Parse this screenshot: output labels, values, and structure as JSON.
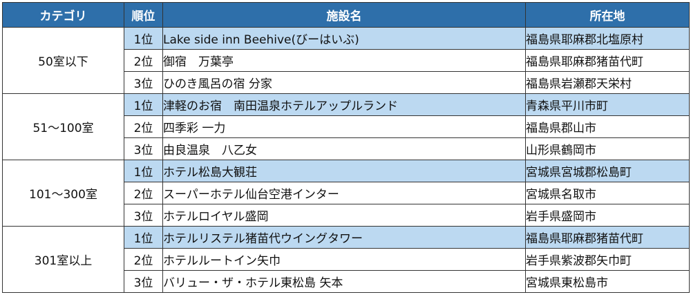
{
  "header": {
    "category": "カテゴリ",
    "rank": "順位",
    "facility": "施設名",
    "location": "所在地"
  },
  "groups": [
    {
      "category": "50室以下",
      "rows": [
        {
          "rank": "1位",
          "facility": "Lake side inn Beehive(びーはいぶ)",
          "location": "福島県耶麻郡北塩原村"
        },
        {
          "rank": "2位",
          "facility": "御宿　万葉亭",
          "location": "福島県耶麻郡猪苗代町"
        },
        {
          "rank": "3位",
          "facility": "ひのき風呂の宿 分家",
          "location": "福島県岩瀬郡天栄村"
        }
      ]
    },
    {
      "category": "51～100室",
      "rows": [
        {
          "rank": "1位",
          "facility": "津軽のお宿　南田温泉ホテルアップルランド",
          "location": "青森県平川市町"
        },
        {
          "rank": "2位",
          "facility": "四季彩 一力",
          "location": "福島県郡山市"
        },
        {
          "rank": "3位",
          "facility": "由良温泉　八乙女",
          "location": "山形県鶴岡市"
        }
      ]
    },
    {
      "category": "101～300室",
      "rows": [
        {
          "rank": "1位",
          "facility": "ホテル松島大観荘",
          "location": "宮城県宮城郡松島町"
        },
        {
          "rank": "2位",
          "facility": "スーパーホテル仙台空港インター",
          "location": "宮城県名取市"
        },
        {
          "rank": "3位",
          "facility": "ホテルロイヤル盛岡",
          "location": "岩手県盛岡市"
        }
      ]
    },
    {
      "category": "301室以上",
      "rows": [
        {
          "rank": "1位",
          "facility": "ホテルリステル猪苗代ウイングタワー",
          "location": "福島県耶麻郡猪苗代町"
        },
        {
          "rank": "2位",
          "facility": "ホテルルートイン矢巾",
          "location": "岩手県紫波郡矢巾町"
        },
        {
          "rank": "3位",
          "facility": "バリュー・ザ・ホテル東松島 矢本",
          "location": "宮城県東松島市"
        }
      ]
    }
  ],
  "colors": {
    "header_bg": "#2e6faa",
    "header_text": "#ffffff",
    "first_place_bg": "#bcd9f1",
    "border": "#333333"
  }
}
